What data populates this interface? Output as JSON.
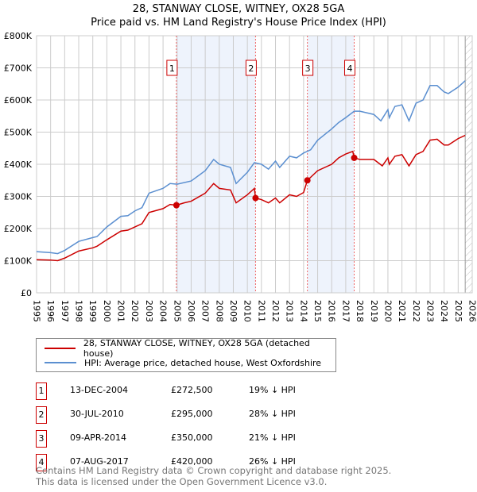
{
  "chart_data": {
    "type": "line",
    "title": "28, STANWAY CLOSE, WITNEY, OX28 5GA",
    "subtitle": "Price paid vs. HM Land Registry's House Price Index (HPI)",
    "xlim": [
      1995,
      2026
    ],
    "ylim": [
      0,
      800000
    ],
    "x_ticks": [
      "1995",
      "1996",
      "1997",
      "1998",
      "1999",
      "2000",
      "2001",
      "2002",
      "2003",
      "2004",
      "2005",
      "2006",
      "2007",
      "2008",
      "2009",
      "2010",
      "2011",
      "2012",
      "2013",
      "2014",
      "2015",
      "2016",
      "2017",
      "2018",
      "2019",
      "2020",
      "2021",
      "2022",
      "2023",
      "2024",
      "2025",
      "2026"
    ],
    "y_ticks": [
      {
        "v": 0,
        "label": "£0"
      },
      {
        "v": 100000,
        "label": "£100K"
      },
      {
        "v": 200000,
        "label": "£200K"
      },
      {
        "v": 300000,
        "label": "£300K"
      },
      {
        "v": 400000,
        "label": "£400K"
      },
      {
        "v": 500000,
        "label": "£500K"
      },
      {
        "v": 600000,
        "label": "£600K"
      },
      {
        "v": 700000,
        "label": "£700K"
      },
      {
        "v": 800000,
        "label": "£800K"
      }
    ],
    "grid": true,
    "shaded_periods": [
      [
        2004.95,
        2010.58
      ],
      [
        2014.27,
        2017.6
      ]
    ],
    "forecast_hatch_from": 2025.5,
    "series": [
      {
        "name": "28, STANWAY CLOSE, WITNEY, OX28 5GA (detached house)",
        "color": "#cc0000",
        "x": [
          1995,
          1996,
          1996.5,
          1997,
          1998,
          1999,
          1999.3,
          2000,
          2001,
          2001.5,
          2002,
          2002.5,
          2003,
          2004,
          2004.5,
          2004.95,
          2005.5,
          2006,
          2007,
          2007.6,
          2008,
          2008.8,
          2009.2,
          2010,
          2010.5,
          2010.58,
          2011,
          2011.5,
          2012,
          2012.3,
          2013,
          2013.5,
          2014,
          2014.27,
          2015,
          2016,
          2016.5,
          2017,
          2017.5,
          2017.6,
          2018,
          2019,
          2019.6,
          2020,
          2020.1,
          2020.5,
          2021,
          2021.5,
          2022,
          2022.5,
          2023,
          2023.5,
          2024,
          2024.3,
          2025,
          2025.5
        ],
        "y": [
          103000,
          102000,
          100000,
          108000,
          130000,
          140000,
          145000,
          165000,
          192000,
          195000,
          205000,
          215000,
          250000,
          262000,
          275000,
          272500,
          280000,
          285000,
          310000,
          340000,
          325000,
          320000,
          280000,
          305000,
          325000,
          295000,
          290000,
          280000,
          295000,
          280000,
          305000,
          300000,
          312000,
          350000,
          380000,
          400000,
          420000,
          432000,
          440000,
          420000,
          415000,
          415000,
          395000,
          420000,
          400000,
          425000,
          430000,
          395000,
          430000,
          440000,
          475000,
          478000,
          460000,
          460000,
          480000,
          490000
        ]
      },
      {
        "name": "HPI: Average price, detached house, West Oxfordshire",
        "color": "#5b8fd0",
        "x": [
          1995,
          1996,
          1996.5,
          1997,
          1998,
          1999,
          1999.3,
          2000,
          2001,
          2001.5,
          2002,
          2002.5,
          2003,
          2004,
          2004.5,
          2005,
          2006,
          2007,
          2007.6,
          2008,
          2008.8,
          2009.2,
          2010,
          2010.5,
          2011,
          2011.5,
          2012,
          2012.3,
          2013,
          2013.5,
          2014,
          2014.5,
          2015,
          2016,
          2016.5,
          2017,
          2017.6,
          2018,
          2019,
          2019.5,
          2020,
          2020.1,
          2020.5,
          2021,
          2021.5,
          2022,
          2022.5,
          2023,
          2023.5,
          2024,
          2024.3,
          2025,
          2025.5
        ],
        "y": [
          128000,
          125000,
          122000,
          132000,
          160000,
          172000,
          175000,
          205000,
          238000,
          240000,
          255000,
          265000,
          310000,
          325000,
          340000,
          338000,
          348000,
          380000,
          415000,
          400000,
          390000,
          340000,
          375000,
          405000,
          400000,
          385000,
          410000,
          390000,
          425000,
          420000,
          435000,
          445000,
          475000,
          510000,
          530000,
          545000,
          565000,
          565000,
          555000,
          535000,
          570000,
          545000,
          580000,
          585000,
          535000,
          590000,
          600000,
          645000,
          645000,
          625000,
          620000,
          640000,
          660000
        ]
      }
    ],
    "sales": [
      {
        "n": "1",
        "x": 2004.95,
        "date": "13-DEC-2004",
        "price": 272500,
        "price_label": "£272,500",
        "hpi": "19% ↓ HPI"
      },
      {
        "n": "2",
        "x": 2010.58,
        "date": "30-JUL-2010",
        "price": 295000,
        "price_label": "£295,000",
        "hpi": "28% ↓ HPI"
      },
      {
        "n": "3",
        "x": 2014.27,
        "date": "09-APR-2014",
        "price": 350000,
        "price_label": "£350,000",
        "hpi": "21% ↓ HPI"
      },
      {
        "n": "4",
        "x": 2017.6,
        "date": "07-AUG-2017",
        "price": 420000,
        "price_label": "£420,000",
        "hpi": "26% ↓ HPI"
      }
    ]
  },
  "footer": [
    "Contains HM Land Registry data © Crown copyright and database right 2025.",
    "This data is licensed under the Open Government Licence v3.0."
  ]
}
